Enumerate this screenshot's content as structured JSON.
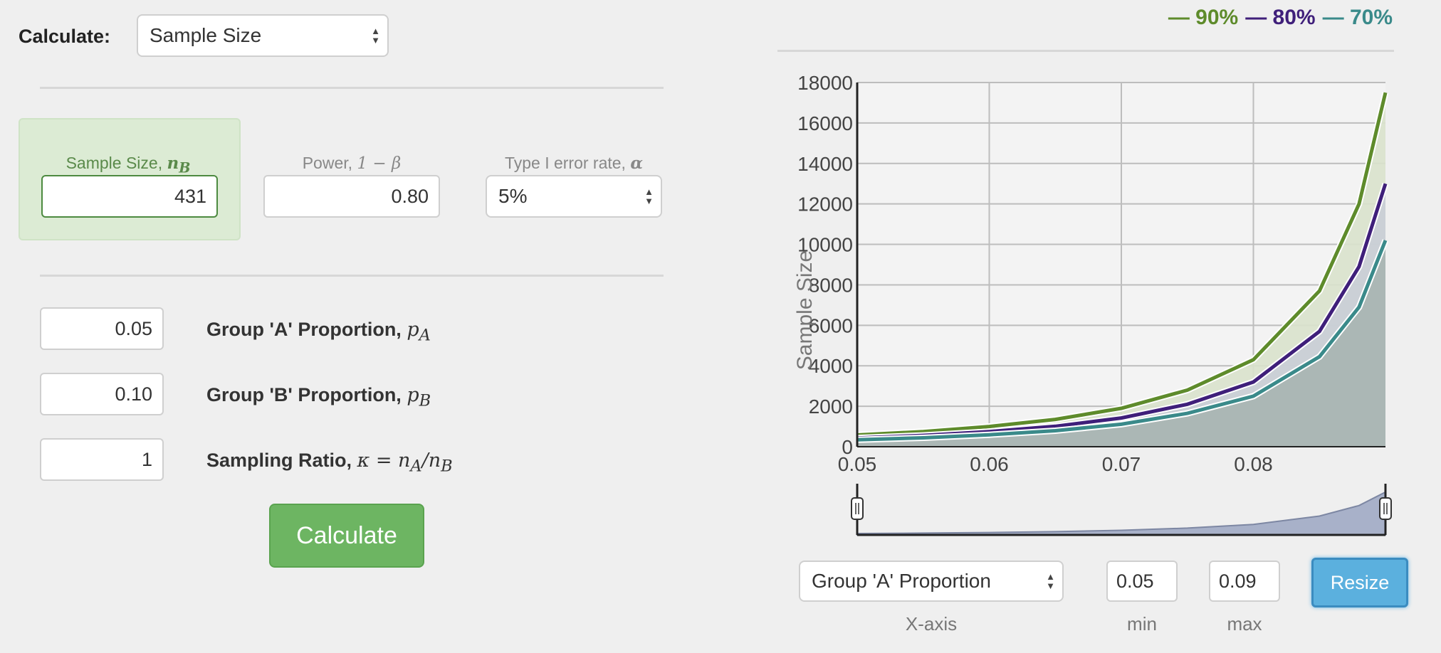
{
  "calculate": {
    "label": "Calculate:",
    "selected": "Sample Size"
  },
  "sample_size": {
    "label_prefix": "Sample Size, ",
    "label_sym": "n",
    "label_sub": "B",
    "value": "431"
  },
  "power": {
    "label_prefix": "Power, ",
    "label_sym": "1 − β",
    "value": "0.80"
  },
  "alpha": {
    "label_prefix": "Type I error rate, ",
    "label_sym": "α",
    "selected": "5%"
  },
  "proportions": [
    {
      "value": "0.05",
      "label": "Group 'A' Proportion, ",
      "sym": "p",
      "sub": "A"
    },
    {
      "value": "0.10",
      "label": "Group 'B' Proportion, ",
      "sym": "p",
      "sub": "B"
    },
    {
      "value": "1",
      "label": "Sampling Ratio, ",
      "sym": "κ = n",
      "sub": "A",
      "tail": "/n",
      "tail_sub": "B"
    }
  ],
  "calculate_button": "Calculate",
  "legend": [
    {
      "label": "— 90%",
      "color": "#5e8b2b"
    },
    {
      "label": "— 80%",
      "color": "#3f1f7a"
    },
    {
      "label": "— 70%",
      "color": "#3a8a8a"
    }
  ],
  "chart_data": {
    "type": "area",
    "ylabel": "Sample Size",
    "xlim": [
      0.05,
      0.09
    ],
    "ylim": [
      0,
      18000
    ],
    "x_ticks": [
      "0.05",
      "0.06",
      "0.07",
      "0.08"
    ],
    "y_ticks": [
      "0",
      "2000",
      "4000",
      "6000",
      "8000",
      "10000",
      "12000",
      "14000",
      "16000",
      "18000"
    ],
    "series": [
      {
        "name": "90%",
        "color": "#5e8b2b",
        "x": [
          0.05,
          0.055,
          0.06,
          0.065,
          0.07,
          0.075,
          0.08,
          0.085,
          0.088,
          0.09
        ],
        "y": [
          580,
          750,
          1000,
          1350,
          1900,
          2800,
          4300,
          7700,
          12000,
          17500
        ]
      },
      {
        "name": "80%",
        "color": "#3f1f7a",
        "x": [
          0.05,
          0.055,
          0.06,
          0.065,
          0.07,
          0.075,
          0.08,
          0.085,
          0.088,
          0.09
        ],
        "y": [
          430,
          560,
          750,
          1010,
          1420,
          2100,
          3200,
          5700,
          8900,
          13000
        ]
      },
      {
        "name": "70%",
        "color": "#3a8a8a",
        "x": [
          0.05,
          0.055,
          0.06,
          0.065,
          0.07,
          0.075,
          0.08,
          0.085,
          0.088,
          0.09
        ],
        "y": [
          340,
          440,
          590,
          790,
          1110,
          1650,
          2500,
          4450,
          6900,
          10200
        ]
      }
    ]
  },
  "xaxis_select": {
    "selected": "Group 'A' Proportion",
    "caption": "X-axis"
  },
  "min": {
    "value": "0.05",
    "caption": "min"
  },
  "max": {
    "value": "0.09",
    "caption": "max"
  },
  "resize_button": "Resize"
}
